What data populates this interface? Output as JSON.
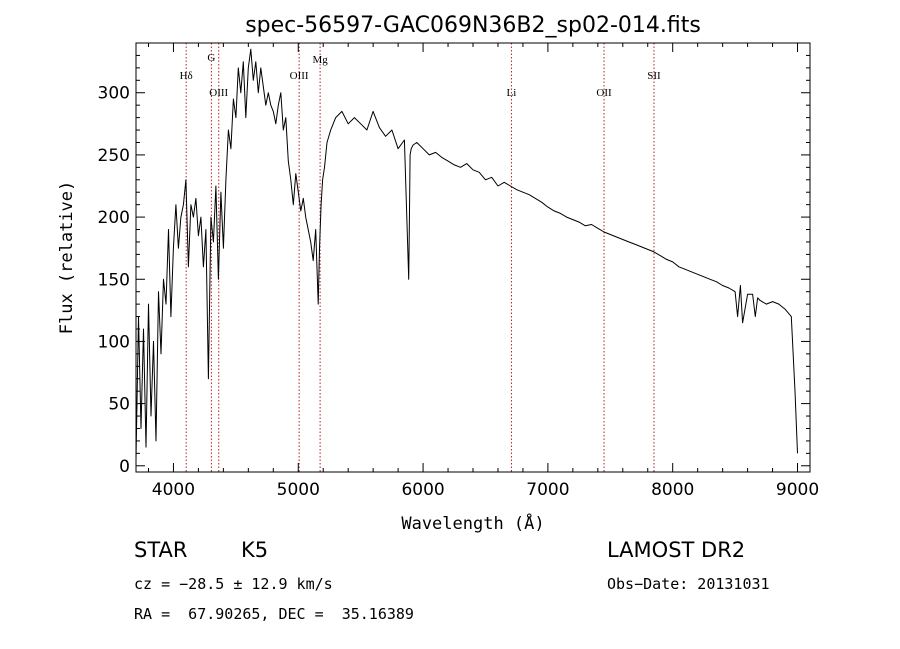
{
  "chart_data": {
    "type": "line",
    "title": "spec-56597-GAC069N36B2_sp02-014.fits",
    "xlabel": "Wavelength (Å)",
    "ylabel": "Flux (relative)",
    "xlim": [
      3700,
      9100
    ],
    "ylim": [
      -5,
      340
    ],
    "xticks": [
      4000,
      5000,
      6000,
      7000,
      8000,
      9000
    ],
    "yticks": [
      0,
      50,
      100,
      150,
      200,
      250,
      300
    ],
    "grid": false,
    "series": [
      {
        "x": [
          3700,
          3720,
          3740,
          3760,
          3780,
          3800,
          3820,
          3840,
          3860,
          3880,
          3900,
          3920,
          3940,
          3960,
          3980,
          4000,
          4020,
          4040,
          4060,
          4080,
          4100,
          4120,
          4140,
          4160,
          4180,
          4200,
          4220,
          4240,
          4260,
          4280,
          4300,
          4320,
          4340,
          4360,
          4380,
          4400,
          4420,
          4440,
          4460,
          4480,
          4500,
          4520,
          4540,
          4560,
          4580,
          4600,
          4620,
          4640,
          4660,
          4680,
          4700,
          4720,
          4740,
          4760,
          4780,
          4800,
          4820,
          4840,
          4860,
          4880,
          4900,
          4920,
          4940,
          4960,
          4980,
          5000,
          5020,
          5040,
          5060,
          5080,
          5100,
          5120,
          5140,
          5160,
          5170,
          5183,
          5195,
          5210,
          5230,
          5260,
          5300,
          5350,
          5400,
          5450,
          5500,
          5550,
          5600,
          5650,
          5700,
          5750,
          5800,
          5850,
          5870,
          5885,
          5890,
          5896,
          5905,
          5920,
          5950,
          6000,
          6050,
          6100,
          6150,
          6200,
          6250,
          6300,
          6350,
          6400,
          6450,
          6500,
          6550,
          6600,
          6650,
          6700,
          6750,
          6800,
          6850,
          6900,
          6950,
          7000,
          7050,
          7100,
          7150,
          7200,
          7250,
          7300,
          7350,
          7400,
          7450,
          7500,
          7550,
          7600,
          7650,
          7700,
          7750,
          7800,
          7850,
          7900,
          7950,
          8000,
          8050,
          8100,
          8150,
          8200,
          8250,
          8300,
          8350,
          8400,
          8450,
          8500,
          8520,
          8542,
          8560,
          8600,
          8640,
          8662,
          8680,
          8700,
          8750,
          8800,
          8850,
          8900,
          8950,
          8980,
          9000
        ],
        "y": [
          5,
          120,
          30,
          110,
          15,
          130,
          40,
          100,
          20,
          140,
          90,
          150,
          130,
          190,
          120,
          175,
          210,
          175,
          200,
          210,
          230,
          160,
          210,
          200,
          215,
          185,
          200,
          160,
          190,
          70,
          200,
          180,
          225,
          150,
          220,
          175,
          230,
          270,
          255,
          295,
          280,
          320,
          300,
          325,
          280,
          320,
          335,
          310,
          325,
          300,
          320,
          305,
          290,
          300,
          290,
          285,
          275,
          290,
          300,
          270,
          280,
          245,
          230,
          210,
          235,
          220,
          205,
          215,
          200,
          190,
          180,
          165,
          190,
          130,
          175,
          210,
          230,
          240,
          260,
          270,
          280,
          285,
          275,
          280,
          275,
          270,
          285,
          272,
          265,
          270,
          255,
          262,
          200,
          150,
          190,
          250,
          255,
          258,
          260,
          255,
          250,
          252,
          248,
          245,
          242,
          240,
          243,
          238,
          236,
          230,
          232,
          225,
          228,
          225,
          222,
          220,
          218,
          215,
          212,
          208,
          205,
          203,
          200,
          198,
          196,
          193,
          194,
          191,
          188,
          186,
          184,
          182,
          180,
          178,
          176,
          174,
          172,
          169,
          166,
          164,
          160,
          158,
          156,
          154,
          152,
          150,
          148,
          145,
          143,
          140,
          120,
          145,
          115,
          138,
          138,
          120,
          135,
          133,
          130,
          132,
          130,
          126,
          120,
          60,
          10
        ]
      }
    ],
    "annotations": [
      "Hδ",
      "G",
      "OIII",
      "OIII",
      "Mg",
      "Li",
      "OII",
      "SII"
    ],
    "line_markers": [
      4102,
      4304,
      4363,
      5007,
      5175,
      6708,
      7450,
      7850
    ]
  },
  "info": {
    "class": "STAR",
    "subclass": "K5",
    "survey": "LAMOST DR2",
    "cz": "cz = −28.5 ± 12.9 km/s",
    "obs_date": "Obs−Date: 20131031",
    "radec": "RA =  67.90265, DEC =  35.16389"
  }
}
